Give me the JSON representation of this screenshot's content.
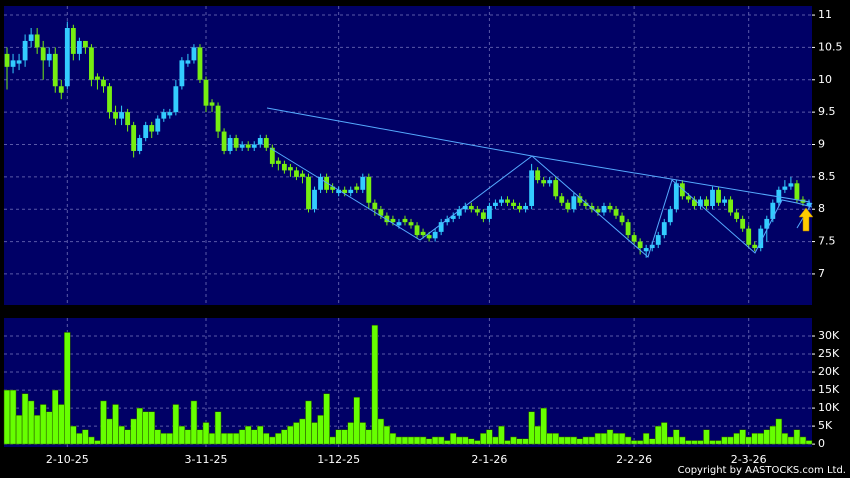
{
  "chart_data": [
    {
      "type": "candlestick",
      "categories": [
        null,
        null,
        null,
        null,
        null,
        null,
        null,
        null,
        null,
        null,
        "2-10-25",
        null,
        null,
        null,
        null,
        null,
        null,
        null,
        null,
        null,
        null,
        null,
        null,
        null,
        null,
        null,
        null,
        null,
        null,
        null,
        null,
        null,
        null,
        "3-11-25",
        null,
        null,
        null,
        null,
        null,
        null,
        null,
        null,
        null,
        null,
        null,
        null,
        null,
        null,
        null,
        null,
        null,
        null,
        null,
        null,
        null,
        "1-12-25",
        null,
        null,
        null,
        null,
        null,
        null,
        null,
        null,
        null,
        null,
        null,
        null,
        null,
        null,
        null,
        null,
        null,
        null,
        null,
        null,
        null,
        null,
        null,
        null,
        "2-1-26",
        null,
        null,
        null,
        null,
        null,
        null,
        null,
        null,
        null,
        null,
        null,
        null,
        null,
        null,
        null,
        null,
        null,
        null,
        null,
        null,
        null,
        null,
        null,
        "2-2-26",
        null,
        null,
        null,
        null,
        null,
        null,
        null,
        null,
        null,
        null,
        null,
        null,
        null,
        null,
        null,
        null,
        null,
        null,
        "2-3-26",
        null,
        null,
        null,
        null,
        null,
        null,
        null,
        null,
        null,
        null
      ],
      "open": [
        10.4,
        10.2,
        10.25,
        10.3,
        10.6,
        10.7,
        10.5,
        10.3,
        10.4,
        9.9,
        9.9,
        10.8,
        10.4,
        10.6,
        10.5,
        10.05,
        10.0,
        9.9,
        9.5,
        9.4,
        9.5,
        9.3,
        8.9,
        9.1,
        9.3,
        9.2,
        9.4,
        9.45,
        9.5,
        9.9,
        10.25,
        10.3,
        10.5,
        10.0,
        9.65,
        9.6,
        9.2,
        8.9,
        9.1,
        8.95,
        9.0,
        8.95,
        9.0,
        9.1,
        8.95,
        8.75,
        8.7,
        8.65,
        8.6,
        8.55,
        8.5,
        8.0,
        8.3,
        8.5,
        8.35,
        8.25,
        8.3,
        8.25,
        8.35,
        8.3,
        8.5,
        8.1,
        8.0,
        7.9,
        7.85,
        7.75,
        7.85,
        7.8,
        7.75,
        7.65,
        7.6,
        7.55,
        7.65,
        7.8,
        7.85,
        7.9,
        8.0,
        8.05,
        8.0,
        7.95,
        7.85,
        8.05,
        8.1,
        8.15,
        8.1,
        8.05,
        8.0,
        8.05,
        8.6,
        8.45,
        8.4,
        8.45,
        8.2,
        8.1,
        8.0,
        8.2,
        8.1,
        8.05,
        8.0,
        7.95,
        8.05,
        8.0,
        7.9,
        7.8,
        7.6,
        7.5,
        7.35,
        7.4,
        7.45,
        7.6,
        7.8,
        8.0,
        8.4,
        8.2,
        8.15,
        8.05,
        8.15,
        8.05,
        8.3,
        8.1,
        8.15,
        7.95,
        7.85,
        7.7,
        7.45,
        7.4,
        7.7,
        7.85,
        8.1,
        8.3,
        8.35,
        8.4,
        8.15,
        8.05
      ],
      "high": [
        10.5,
        10.4,
        10.4,
        10.7,
        10.8,
        10.8,
        10.6,
        10.5,
        10.5,
        10.0,
        10.9,
        10.85,
        10.65,
        10.6,
        10.55,
        10.1,
        10.05,
        9.95,
        9.6,
        9.6,
        9.55,
        9.35,
        9.15,
        9.35,
        9.35,
        9.45,
        9.55,
        9.55,
        10.0,
        10.35,
        10.4,
        10.55,
        10.55,
        10.05,
        9.7,
        9.65,
        9.25,
        9.15,
        9.15,
        9.05,
        9.05,
        9.05,
        9.15,
        9.15,
        9.0,
        8.8,
        8.75,
        8.7,
        8.65,
        8.6,
        8.55,
        8.35,
        8.55,
        8.55,
        8.4,
        8.35,
        8.35,
        8.35,
        8.4,
        8.55,
        8.55,
        8.15,
        8.05,
        7.95,
        7.9,
        7.85,
        7.9,
        7.85,
        7.8,
        7.7,
        7.65,
        7.7,
        7.85,
        7.9,
        7.95,
        8.05,
        8.1,
        8.1,
        8.05,
        8.0,
        8.1,
        8.15,
        8.2,
        8.2,
        8.15,
        8.1,
        8.1,
        8.7,
        8.65,
        8.5,
        8.5,
        8.5,
        8.25,
        8.15,
        8.25,
        8.25,
        8.15,
        8.1,
        8.05,
        8.1,
        8.1,
        8.05,
        7.95,
        7.85,
        7.65,
        7.55,
        7.45,
        7.5,
        7.65,
        7.85,
        8.05,
        8.45,
        8.45,
        8.25,
        8.2,
        8.2,
        8.2,
        8.35,
        8.35,
        8.2,
        8.2,
        8.0,
        7.9,
        7.75,
        7.5,
        7.75,
        7.9,
        8.15,
        8.35,
        8.45,
        8.5,
        8.45,
        8.2,
        8.15
      ],
      "low": [
        9.85,
        10.1,
        10.15,
        10.2,
        10.5,
        10.4,
        10.0,
        10.2,
        9.8,
        9.7,
        9.85,
        10.3,
        10.3,
        10.4,
        9.9,
        9.85,
        9.8,
        9.4,
        9.3,
        9.3,
        9.2,
        8.8,
        8.85,
        9.05,
        9.1,
        9.15,
        9.35,
        9.4,
        9.45,
        9.85,
        10.2,
        10.25,
        9.95,
        9.5,
        9.5,
        9.1,
        8.85,
        8.85,
        8.9,
        8.9,
        8.9,
        8.9,
        8.95,
        8.9,
        8.65,
        8.6,
        8.55,
        8.5,
        8.45,
        8.4,
        7.95,
        7.95,
        8.25,
        8.25,
        8.25,
        8.2,
        8.2,
        8.2,
        8.25,
        8.25,
        8.0,
        7.9,
        7.85,
        7.75,
        7.75,
        7.7,
        7.75,
        7.7,
        7.55,
        7.55,
        7.5,
        7.5,
        7.6,
        7.75,
        7.8,
        7.85,
        7.95,
        7.95,
        7.9,
        7.8,
        7.8,
        8.0,
        8.05,
        8.05,
        8.0,
        7.95,
        7.95,
        8.0,
        8.4,
        8.35,
        8.35,
        8.15,
        8.05,
        7.95,
        7.95,
        8.05,
        8.0,
        7.95,
        7.9,
        7.9,
        7.95,
        7.85,
        7.75,
        7.55,
        7.45,
        7.3,
        7.25,
        7.35,
        7.4,
        7.55,
        7.75,
        7.95,
        8.15,
        8.1,
        8.0,
        8.0,
        8.0,
        8.0,
        8.05,
        8.05,
        7.9,
        7.8,
        7.65,
        7.4,
        7.35,
        7.35,
        7.5,
        7.8,
        8.05,
        8.25,
        8.3,
        8.1,
        8.05,
        8.0
      ],
      "close": [
        10.2,
        10.3,
        10.3,
        10.6,
        10.7,
        10.5,
        10.3,
        10.4,
        9.9,
        9.8,
        10.8,
        10.4,
        10.6,
        10.5,
        10.0,
        10.0,
        9.9,
        9.5,
        9.4,
        9.5,
        9.3,
        8.9,
        9.1,
        9.3,
        9.2,
        9.4,
        9.5,
        9.5,
        9.9,
        10.3,
        10.3,
        10.5,
        10.0,
        9.6,
        9.6,
        9.2,
        8.9,
        9.1,
        8.95,
        9.0,
        8.95,
        9.0,
        9.1,
        8.95,
        8.7,
        8.7,
        8.6,
        8.6,
        8.5,
        8.5,
        8.0,
        8.3,
        8.5,
        8.3,
        8.3,
        8.3,
        8.25,
        8.3,
        8.3,
        8.5,
        8.1,
        8.0,
        7.9,
        7.8,
        7.8,
        7.8,
        7.8,
        7.75,
        7.6,
        7.6,
        7.55,
        7.65,
        7.8,
        7.85,
        7.9,
        8.0,
        8.05,
        8.0,
        7.95,
        7.85,
        8.05,
        8.1,
        8.15,
        8.1,
        8.05,
        8.0,
        8.05,
        8.6,
        8.45,
        8.4,
        8.45,
        8.2,
        8.1,
        8.0,
        8.2,
        8.1,
        8.05,
        8.0,
        7.95,
        8.05,
        8.0,
        7.9,
        7.8,
        7.6,
        7.5,
        7.4,
        7.4,
        7.45,
        7.6,
        7.8,
        8.0,
        8.4,
        8.2,
        8.15,
        8.05,
        8.15,
        8.05,
        8.3,
        8.1,
        8.15,
        7.95,
        7.85,
        7.7,
        7.45,
        7.4,
        7.7,
        7.85,
        8.1,
        8.3,
        8.35,
        8.4,
        8.15,
        8.1,
        8.1
      ],
      "up_color": "#33ccff",
      "down_color": "#77ee11",
      "ylim": [
        6.52,
        11.14
      ],
      "yticks": [
        7,
        7.5,
        8,
        8.5,
        9,
        9.5,
        10,
        10.5,
        11
      ],
      "grid": true
    },
    {
      "type": "bar",
      "values": [
        15000,
        15000,
        8000,
        14000,
        12000,
        8000,
        11000,
        9000,
        15000,
        11000,
        31000,
        5000,
        3000,
        4000,
        2000,
        1000,
        12000,
        7000,
        11000,
        5000,
        4000,
        7000,
        10000,
        9000,
        9000,
        4000,
        3000,
        3000,
        11000,
        5000,
        4000,
        12000,
        4000,
        6000,
        3000,
        9000,
        3000,
        3000,
        3000,
        4000,
        5000,
        4000,
        5000,
        3000,
        2000,
        3000,
        4000,
        5000,
        6000,
        7000,
        12000,
        6000,
        8000,
        14000,
        2000,
        4000,
        4000,
        6000,
        13000,
        6000,
        4000,
        33000,
        7000,
        5000,
        3000,
        2000,
        2000,
        2000,
        2000,
        2000,
        1500,
        2000,
        2000,
        1000,
        3000,
        2000,
        2000,
        1500,
        1000,
        3000,
        4000,
        2000,
        5000,
        1000,
        2000,
        1500,
        1500,
        9000,
        5000,
        10000,
        3000,
        3000,
        2000,
        2000,
        2000,
        1500,
        2000,
        2000,
        3000,
        3000,
        4000,
        3000,
        3000,
        2000,
        1000,
        1000,
        3000,
        1500,
        5000,
        6000,
        2000,
        4000,
        2000,
        1000,
        1000,
        1000,
        4000,
        1000,
        1000,
        2000,
        2000,
        3000,
        4000,
        2000,
        3000,
        3000,
        4000,
        5000,
        7000,
        3000,
        2000,
        4000,
        2000,
        1000
      ],
      "color": "#66ff00",
      "ylim": [
        -800,
        35000
      ],
      "yticks": [
        0,
        {
          "value": 5000,
          "label": "5K"
        },
        {
          "value": 10000,
          "label": "10K"
        },
        {
          "value": 15000,
          "label": "15K"
        },
        {
          "value": 20000,
          "label": "20K"
        },
        {
          "value": 25000,
          "label": "25K"
        },
        {
          "value": 30000,
          "label": "30K"
        }
      ],
      "grid": true
    }
  ],
  "copyright": "Copyright by AASTOCKS.com Ltd."
}
